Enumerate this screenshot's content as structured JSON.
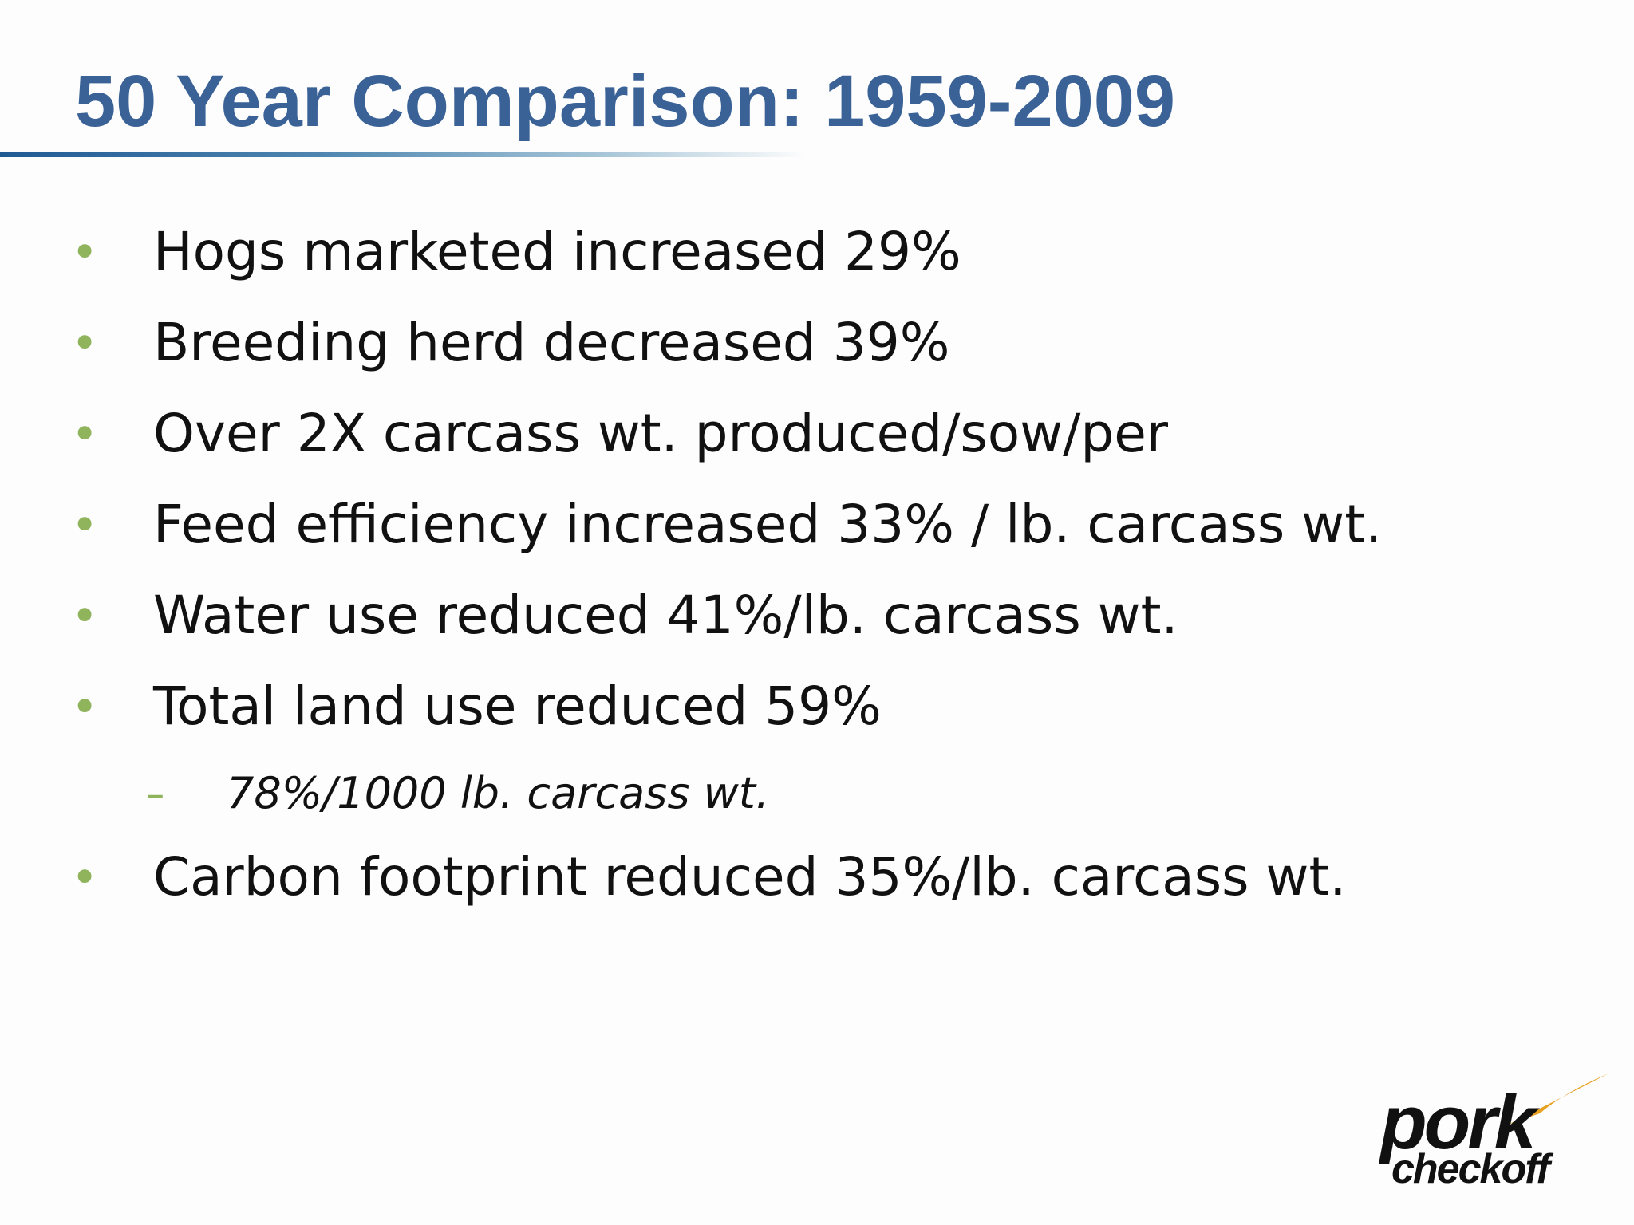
{
  "slide": {
    "title": "50 Year Comparison: 1959-2009",
    "bullets": [
      {
        "text": "Hogs marketed increased 29%"
      },
      {
        "text": "Breeding herd decreased 39%"
      },
      {
        "text": "Over 2X carcass wt. produced/sow/per"
      },
      {
        "text": "Feed efficiency increased 33% / lb. carcass wt."
      },
      {
        "text": "Water use reduced 41%/lb. carcass wt."
      },
      {
        "text": "Total land use reduced 59%"
      },
      {
        "text": "Carbon footprint reduced 35%/lb. carcass wt."
      }
    ],
    "sub_bullet": {
      "text": "78%/1000 lb. carcass wt."
    },
    "bullet_glyph": "•",
    "sub_glyph": "–"
  },
  "logo": {
    "line1": "pork",
    "line2": "checkoff"
  },
  "colors": {
    "title": "#3a6297",
    "bullet_marker": "#8fb45c",
    "body_text": "#111111",
    "logo_accent": "#e8a020"
  }
}
